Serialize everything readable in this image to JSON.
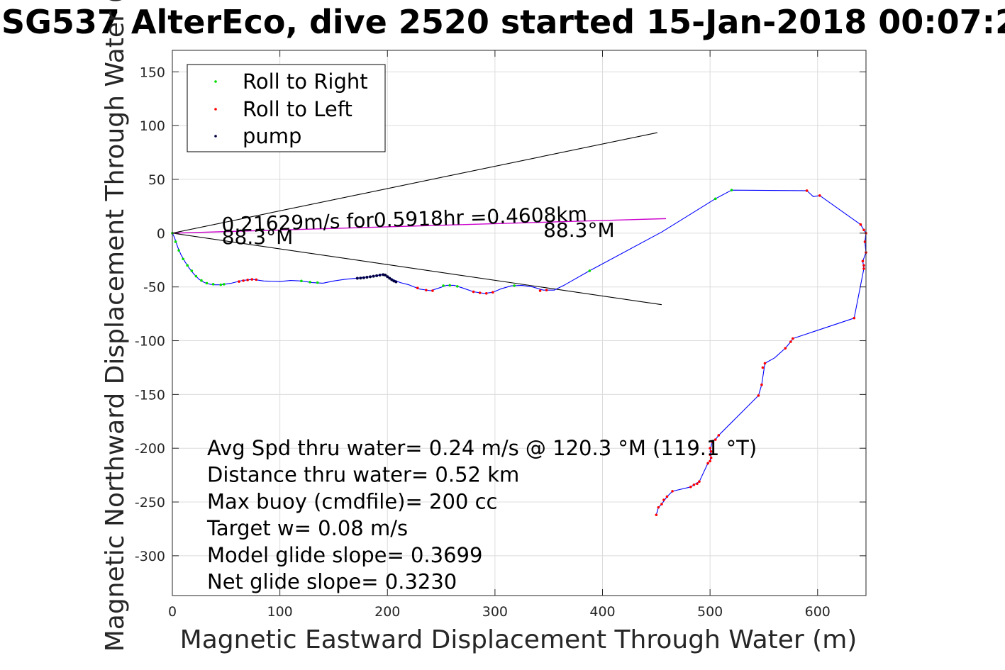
{
  "chart_data": {
    "type": "scatter",
    "title": "SG537 AlterEco, dive 2520 started 15-Jan-2018 00:07:2",
    "xlabel": "Magnetic Eastward Displacement Through Water (m)",
    "ylabel": "Magnetic Northward Displacement Through Water (",
    "xlim": [
      0,
      645
    ],
    "ylim": [
      -337,
      170
    ],
    "xticks": [
      0,
      100,
      200,
      300,
      400,
      500,
      600
    ],
    "yticks": [
      150,
      100,
      50,
      0,
      -50,
      -100,
      -150,
      -200,
      -250,
      -300
    ],
    "grid": true,
    "legend_position": "top-left",
    "colors": {
      "track": "#0000ff",
      "roll_right": "#00dd00",
      "roll_left": "#ff0000",
      "pump": "#000040",
      "current_line": "#cc00cc",
      "cone_lines": "#000000"
    },
    "legend": [
      {
        "label": "Roll to Right",
        "color": "#00dd00"
      },
      {
        "label": "Roll to Left",
        "color": "#ff0000"
      },
      {
        "label": "pump",
        "color": "#000040"
      }
    ],
    "track": [
      [
        0,
        0
      ],
      [
        2,
        -4
      ],
      [
        5,
        -13
      ],
      [
        8,
        -20
      ],
      [
        12,
        -27
      ],
      [
        16,
        -33
      ],
      [
        20,
        -38
      ],
      [
        25,
        -43
      ],
      [
        30,
        -46
      ],
      [
        35,
        -47.5
      ],
      [
        40,
        -48
      ],
      [
        45,
        -48
      ],
      [
        55,
        -46.5
      ],
      [
        65,
        -44
      ],
      [
        75,
        -43
      ],
      [
        85,
        -44.5
      ],
      [
        100,
        -45
      ],
      [
        110,
        -44
      ],
      [
        120,
        -44.5
      ],
      [
        130,
        -46
      ],
      [
        140,
        -46.5
      ],
      [
        150,
        -44.5
      ],
      [
        160,
        -43
      ],
      [
        170,
        -42
      ],
      [
        180,
        -41
      ],
      [
        190,
        -39.5
      ],
      [
        195,
        -38.5
      ],
      [
        200,
        -40
      ],
      [
        205,
        -43
      ],
      [
        212,
        -46
      ],
      [
        220,
        -48
      ],
      [
        230,
        -52
      ],
      [
        240,
        -53.5
      ],
      [
        248,
        -51
      ],
      [
        255,
        -48.5
      ],
      [
        262,
        -48.5
      ],
      [
        270,
        -51
      ],
      [
        280,
        -54.5
      ],
      [
        290,
        -56
      ],
      [
        298,
        -55
      ],
      [
        305,
        -52
      ],
      [
        315,
        -49
      ],
      [
        325,
        -48.5
      ],
      [
        335,
        -50
      ],
      [
        345,
        -53
      ],
      [
        355,
        -53
      ],
      [
        365,
        -48
      ],
      [
        388,
        -35
      ],
      [
        455,
        1
      ],
      [
        505,
        32
      ],
      [
        520,
        40
      ],
      [
        590,
        39.5
      ],
      [
        596,
        34
      ],
      [
        602,
        35
      ],
      [
        640,
        8
      ],
      [
        643,
        3
      ],
      [
        645,
        0
      ],
      [
        644,
        -8
      ],
      [
        645,
        -18
      ],
      [
        642,
        -26
      ],
      [
        643,
        -33
      ],
      [
        634,
        -79
      ],
      [
        577,
        -98
      ],
      [
        575,
        -101
      ],
      [
        570,
        -107
      ],
      [
        560,
        -116
      ],
      [
        551,
        -121
      ],
      [
        548,
        -141
      ],
      [
        545,
        -151
      ],
      [
        508,
        -188
      ],
      [
        505,
        -192
      ],
      [
        502,
        -194
      ],
      [
        500,
        -203
      ],
      [
        501,
        -206
      ],
      [
        500,
        -212
      ],
      [
        498,
        -214
      ],
      [
        490,
        -231
      ],
      [
        485,
        -234
      ],
      [
        482,
        -236
      ],
      [
        465,
        -240
      ],
      [
        460,
        -245
      ],
      [
        455,
        -252
      ],
      [
        452,
        -255
      ],
      [
        450,
        -262
      ]
    ],
    "roll_right_points": [
      [
        0,
        0
      ],
      [
        3,
        -8
      ],
      [
        6,
        -16
      ],
      [
        10,
        -24
      ],
      [
        14,
        -30
      ],
      [
        18,
        -35
      ],
      [
        22,
        -40
      ],
      [
        27,
        -44
      ],
      [
        32,
        -46.5
      ],
      [
        38,
        -47.5
      ],
      [
        45,
        -48
      ],
      [
        48,
        -47.5
      ],
      [
        120,
        -44.5
      ],
      [
        128,
        -45.5
      ],
      [
        135,
        -46
      ],
      [
        252,
        -48.8
      ],
      [
        258,
        -48.5
      ],
      [
        265,
        -49.5
      ],
      [
        318,
        -48.8
      ],
      [
        388,
        -35
      ],
      [
        505,
        32
      ],
      [
        520,
        40
      ]
    ],
    "roll_left_points": [
      [
        62,
        -45
      ],
      [
        66,
        -44.2
      ],
      [
        70,
        -43.5
      ],
      [
        74,
        -43
      ],
      [
        78,
        -43.2
      ],
      [
        228,
        -51
      ],
      [
        236,
        -53
      ],
      [
        242,
        -53.5
      ],
      [
        280,
        -54.5
      ],
      [
        286,
        -55.5
      ],
      [
        292,
        -56
      ],
      [
        298,
        -55
      ],
      [
        342,
        -53.5
      ],
      [
        348,
        -53
      ],
      [
        590,
        39.5
      ],
      [
        602,
        35
      ],
      [
        640,
        8
      ],
      [
        643,
        3
      ],
      [
        645,
        0
      ],
      [
        644,
        -8
      ],
      [
        645,
        -18
      ],
      [
        642,
        -26
      ],
      [
        643,
        -30
      ],
      [
        643,
        -33
      ],
      [
        634,
        -79
      ],
      [
        577,
        -98
      ],
      [
        575,
        -101
      ],
      [
        570,
        -107
      ],
      [
        551,
        -121
      ],
      [
        549,
        -125
      ],
      [
        548,
        -141
      ],
      [
        545,
        -151
      ],
      [
        508,
        -188
      ],
      [
        505,
        -192
      ],
      [
        502,
        -194
      ],
      [
        500,
        -200
      ],
      [
        501,
        -203
      ],
      [
        500,
        -206
      ],
      [
        501,
        -209
      ],
      [
        500,
        -212
      ],
      [
        498,
        -214
      ],
      [
        490,
        -231
      ],
      [
        488,
        -233
      ],
      [
        485,
        -234
      ],
      [
        482,
        -236
      ],
      [
        465,
        -240
      ],
      [
        460,
        -245
      ],
      [
        457,
        -248
      ],
      [
        455,
        -252
      ],
      [
        452,
        -255
      ],
      [
        450,
        -262
      ]
    ],
    "pump_points": [
      [
        172,
        -42
      ],
      [
        175,
        -41.8
      ],
      [
        178,
        -41.5
      ],
      [
        181,
        -41
      ],
      [
        184,
        -40.6
      ],
      [
        187,
        -40.1
      ],
      [
        190,
        -39.6
      ],
      [
        193,
        -39
      ],
      [
        196,
        -38.6
      ],
      [
        198,
        -39
      ],
      [
        200,
        -40.5
      ],
      [
        202,
        -42
      ],
      [
        204,
        -43.3
      ],
      [
        206,
        -44.5
      ],
      [
        208,
        -45.3
      ]
    ],
    "cone_lines": [
      {
        "from": [
          0,
          0
        ],
        "to": [
          451,
          93.5
        ]
      },
      {
        "from": [
          0,
          0
        ],
        "to": [
          455,
          -66.5
        ]
      }
    ],
    "current_line": {
      "from": [
        0,
        0
      ],
      "to": [
        459,
        13.5
      ]
    },
    "annotations": [
      {
        "text": "0.21629m/s for0.5918hr =0.4608km",
        "x": 46,
        "y": 1.5,
        "rotation": -1.7
      },
      {
        "text": "88.3°M",
        "x": 46,
        "y": -10
      },
      {
        "text": "88.3°M",
        "x": 345,
        "y": -3.5
      }
    ],
    "stats": [
      "Avg Spd thru water=  0.24 m/s @ 120.3 °M (119.1 °T)",
      "Distance thru water=  0.52 km",
      "Max buoy (cmdfile)= 200 cc",
      "Target w= 0.08 m/s",
      "Model glide slope= 0.3699",
      "Net glide slope= 0.3230"
    ]
  }
}
